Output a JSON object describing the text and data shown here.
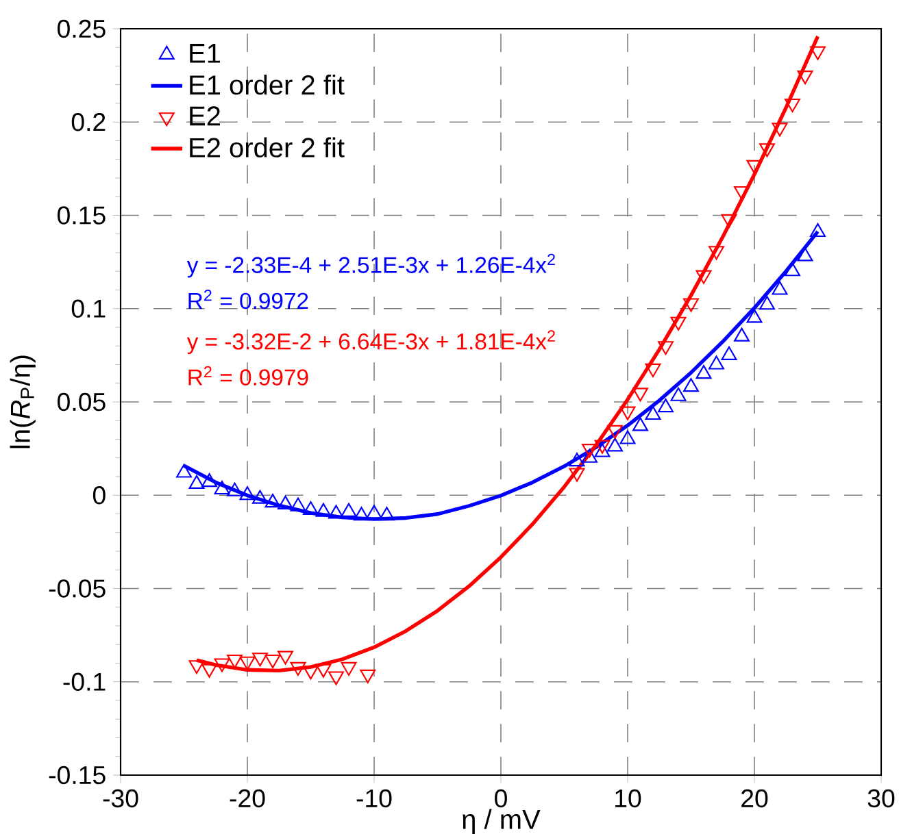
{
  "chart_data": {
    "type": "scatter",
    "xlabel": "η / mV",
    "ylabel": "ln(*R*$_{P}$/η)",
    "xlim": [
      -30,
      30
    ],
    "ylim": [
      -0.15,
      0.25
    ],
    "xticks": [
      -30,
      -20,
      -10,
      0,
      10,
      20,
      30
    ],
    "yticks": [
      -0.15,
      -0.1,
      -0.05,
      0,
      0.05,
      0.1,
      0.15,
      0.2,
      0.25
    ],
    "grid": true,
    "legend": "top left",
    "series": [
      {
        "name": "E1",
        "marker": "triangle",
        "color": "#0000ff",
        "x": [
          -25,
          -24,
          -23,
          -22,
          -21,
          -20,
          -19,
          -18,
          -17,
          -16,
          -15,
          -14,
          -13,
          -12,
          -11,
          -10,
          -9,
          6,
          7,
          8,
          9,
          10,
          11,
          12,
          13,
          14,
          15,
          16,
          17,
          18,
          19,
          20,
          21,
          22,
          23,
          24,
          25
        ],
        "values": [
          0.012,
          0.006,
          0.007,
          0.003,
          0.002,
          0.0,
          -0.002,
          -0.004,
          -0.005,
          -0.006,
          -0.008,
          -0.009,
          -0.01,
          -0.009,
          -0.011,
          -0.01,
          -0.011,
          0.018,
          0.02,
          0.023,
          0.026,
          0.03,
          0.037,
          0.043,
          0.047,
          0.053,
          0.058,
          0.065,
          0.07,
          0.075,
          0.085,
          0.095,
          0.102,
          0.11,
          0.12,
          0.128,
          0.141
        ]
      },
      {
        "name": "E1 order 2 fit",
        "type": "line",
        "marker": "none",
        "color": "#0000ff",
        "x": [
          -25,
          -22.5,
          -20,
          -17.5,
          -15,
          -12.5,
          -10,
          -7.5,
          -5,
          -2.5,
          0,
          2.5,
          5,
          7.5,
          10,
          12.5,
          15,
          17.5,
          20,
          22.5,
          25
        ],
        "values": [
          0.0158,
          0.0069,
          -0.0001,
          -0.0055,
          -0.0095,
          -0.0119,
          -0.0128,
          -0.0122,
          -0.0101,
          -0.0057,
          -0.0002,
          0.0069,
          0.0155,
          0.0257,
          0.0374,
          0.0508,
          0.0657,
          0.0823,
          0.1004,
          0.1201,
          0.1413
        ]
      },
      {
        "name": "E2",
        "marker": "triangle-down",
        "color": "#ff0000",
        "x": [
          -24,
          -23,
          -22,
          -21,
          -20,
          -19,
          -18,
          -17,
          -16,
          -15,
          -14,
          -13,
          -12,
          -10.5,
          6,
          7,
          8,
          9,
          10,
          11,
          12,
          13,
          14,
          15,
          16,
          17,
          18,
          19,
          20,
          21,
          22,
          23,
          24,
          25
        ],
        "values": [
          -0.091,
          -0.093,
          -0.09,
          -0.088,
          -0.089,
          -0.087,
          -0.088,
          -0.086,
          -0.092,
          -0.094,
          -0.093,
          -0.097,
          -0.092,
          -0.096,
          0.012,
          0.025,
          0.027,
          0.035,
          0.045,
          0.055,
          0.068,
          0.08,
          0.093,
          0.103,
          0.118,
          0.131,
          0.148,
          0.163,
          0.177,
          0.186,
          0.197,
          0.21,
          0.225,
          0.238
        ]
      },
      {
        "name": "E2 order 2 fit",
        "type": "line",
        "marker": "none",
        "color": "#ff0000",
        "x": [
          -24,
          -22.5,
          -20,
          -17.5,
          -15,
          -12.5,
          -10,
          -7.5,
          -5,
          -2.5,
          0,
          2.5,
          5,
          7.5,
          10,
          12.5,
          15,
          17.5,
          20,
          22.5,
          25
        ],
        "values": [
          -0.0884,
          -0.091,
          -0.0936,
          -0.094,
          -0.0921,
          -0.0879,
          -0.0815,
          -0.0728,
          -0.0619,
          -0.0487,
          -0.0332,
          -0.0155,
          0.0045,
          0.0268,
          0.0513,
          0.0781,
          0.1071,
          0.1384,
          0.172,
          0.2078,
          0.2459
        ]
      }
    ],
    "annotations": [
      "y = -2.33E-4 + 2.51E-3x + 1.26E-4x$^{2}$",
      "R$^{2}$ = 0.9972",
      "y = -3.32E-2 + 6.64E-3x + 1.81E-4x$^{2}$",
      "R$^{2}$ = 0.9979"
    ]
  }
}
